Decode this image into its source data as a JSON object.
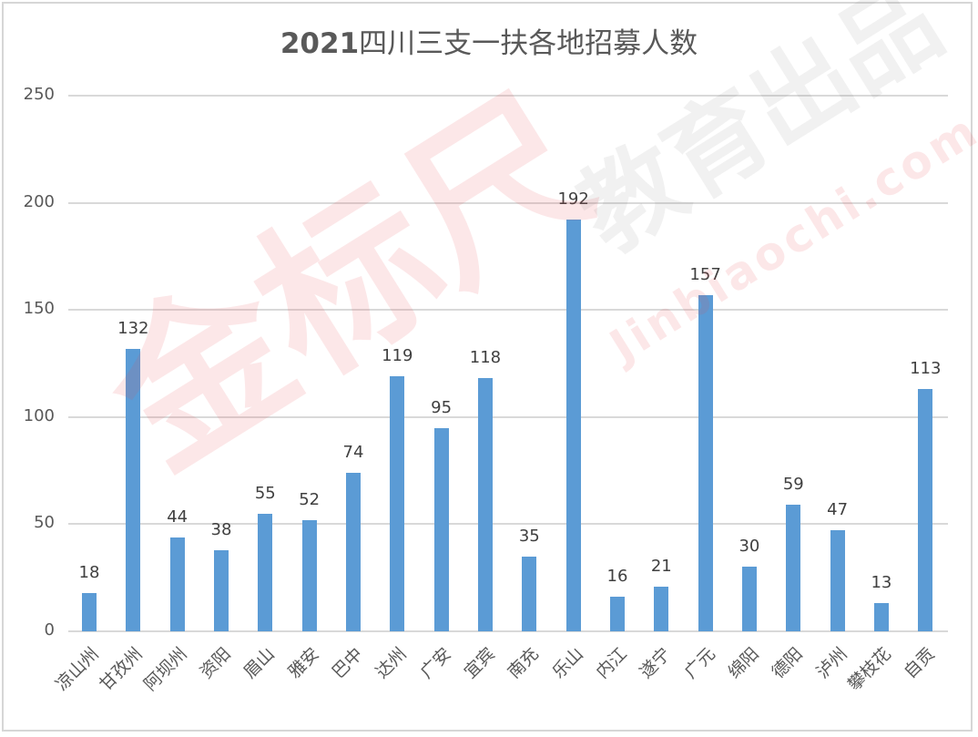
{
  "chart_data": {
    "type": "bar",
    "title": "2021四川三支一扶各地招募人数",
    "xlabel": "",
    "ylabel": "",
    "ylim": [
      0,
      250
    ],
    "yticks": [
      0,
      50,
      100,
      150,
      200,
      250
    ],
    "grid": true,
    "legend": null,
    "bar_color": "#5B9BD5",
    "categories": [
      "凉山州",
      "甘孜州",
      "阿坝州",
      "资阳",
      "眉山",
      "雅安",
      "巴中",
      "达州",
      "广安",
      "宜宾",
      "南充",
      "乐山",
      "内江",
      "遂宁",
      "广元",
      "绵阳",
      "德阳",
      "泸州",
      "攀枝花",
      "自贡"
    ],
    "values": [
      18,
      132,
      44,
      38,
      55,
      52,
      74,
      119,
      95,
      118,
      35,
      192,
      16,
      21,
      157,
      30,
      59,
      47,
      13,
      113
    ],
    "data_labels": true
  },
  "chart": {
    "title_year": "2021",
    "title_rest": "四川三支一扶各地招募人数",
    "yticks": [
      "0",
      "50",
      "100",
      "150",
      "200",
      "250"
    ]
  },
  "watermark": {
    "brand": "金标尺",
    "slogan": "教育出品",
    "url": "Jinbiaochi.com"
  }
}
